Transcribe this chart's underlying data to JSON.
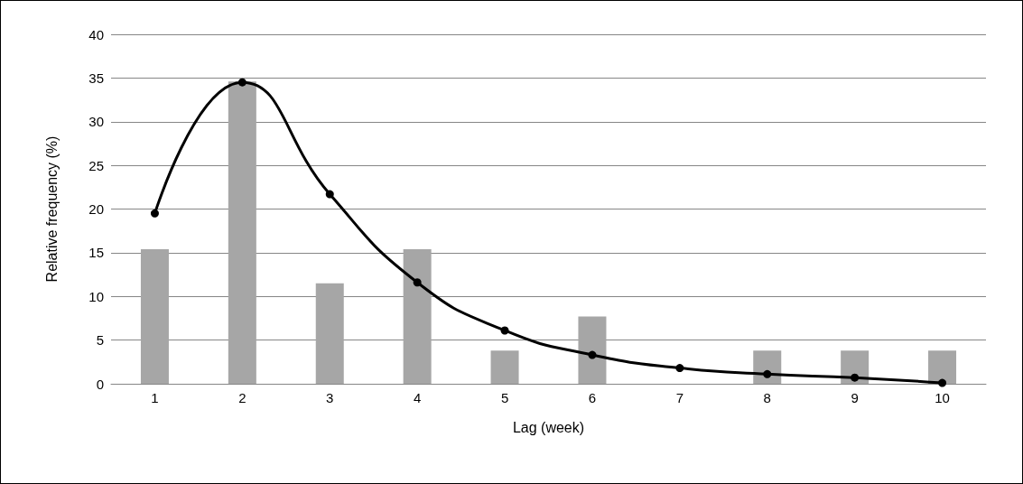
{
  "chart_data": {
    "type": "bar",
    "xlabel": "Lag (week)",
    "ylabel": "Relative frequency (%)",
    "categories": [
      "1",
      "2",
      "3",
      "4",
      "5",
      "6",
      "7",
      "8",
      "9",
      "10"
    ],
    "series": [
      {
        "color": "#a6a6a6",
        "values": [
          15.4,
          34.6,
          11.5,
          15.4,
          3.8,
          7.7,
          0,
          3.8,
          3.8,
          3.8
        ]
      },
      {
        "type": "line",
        "color": "#000000",
        "marker": "circle",
        "line_style": "solid",
        "values": [
          19.5,
          34.5,
          21.7,
          11.6,
          6.1,
          3.3,
          1.8,
          1.1,
          0.7,
          0.1
        ]
      }
    ],
    "ylim": [
      0,
      40
    ],
    "yticks": [
      0,
      5,
      10,
      15,
      20,
      25,
      30,
      35,
      40
    ],
    "grid": "y"
  }
}
